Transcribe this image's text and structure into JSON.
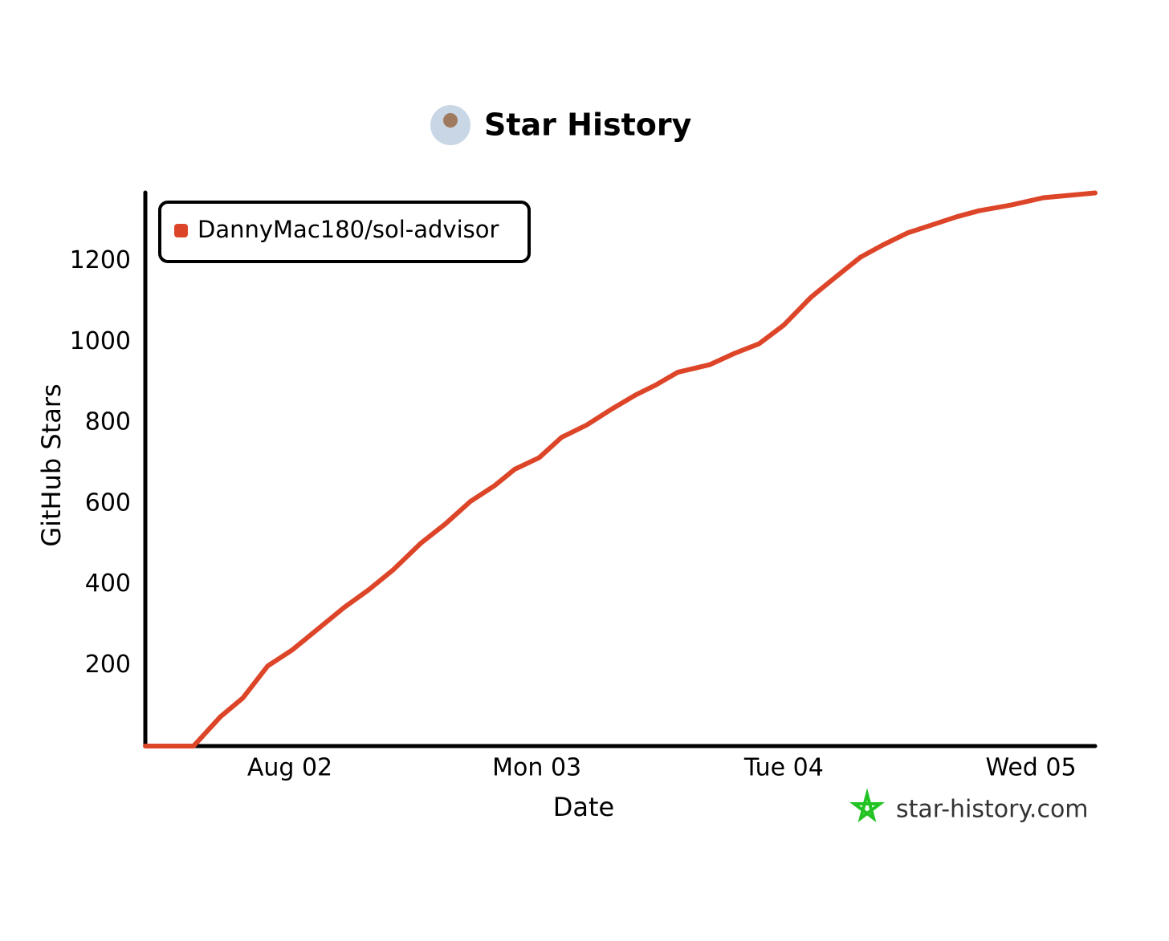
{
  "chart_data": {
    "type": "line",
    "title": "Star History",
    "x_label": "Date",
    "y_label": "GitHub Stars",
    "watermark": "star-history.com",
    "legend": "top-left",
    "xlim": [
      1.415,
      5.26
    ],
    "xticks": [
      {
        "value": 2,
        "label": "Aug 02"
      },
      {
        "value": 3,
        "label": "Mon 03"
      },
      {
        "value": 4,
        "label": "Tue 04"
      },
      {
        "value": 5,
        "label": "Wed 05"
      }
    ],
    "ylim": [
      0,
      1370
    ],
    "yticks": [
      200,
      400,
      600,
      800,
      1000,
      1200
    ],
    "x": [
      1.415,
      1.61,
      1.72,
      1.81,
      1.91,
      2.01,
      2.13,
      2.22,
      2.32,
      2.42,
      2.53,
      2.63,
      2.73,
      2.83,
      2.91,
      3.01,
      3.1,
      3.2,
      3.3,
      3.4,
      3.48,
      3.57,
      3.7,
      3.8,
      3.9,
      4.0,
      4.11,
      4.21,
      4.31,
      4.4,
      4.5,
      4.6,
      4.7,
      4.79,
      4.92,
      5.05,
      5.26
    ],
    "series": [
      {
        "name": "DannyMac180/sol-advisor",
        "color": "#dd4528",
        "values": [
          0,
          0,
          73,
          119,
          198,
          238,
          298,
          343,
          387,
          437,
          502,
          550,
          605,
          645,
          685,
          714,
          764,
          794,
          833,
          869,
          893,
          925,
          944,
          972,
          996,
          1042,
          1111,
          1161,
          1210,
          1240,
          1270,
          1290,
          1310,
          1325,
          1339,
          1357,
          1369
        ]
      }
    ]
  }
}
